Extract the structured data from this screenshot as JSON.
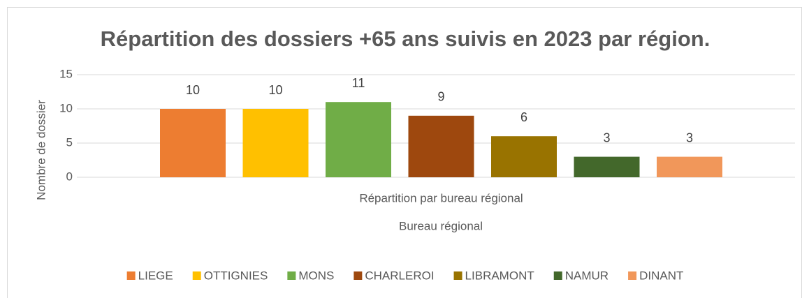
{
  "chart_data": {
    "type": "bar",
    "title": "Répartition des dossiers +65 ans suivis en 2023 par région.",
    "x_label": "Bureau régional",
    "y_label": "Nombre de dossier",
    "categories": [
      "Répartition par bureau régional"
    ],
    "series": [
      {
        "name": "LIEGE",
        "color": "#ED7D31",
        "values": [
          10
        ]
      },
      {
        "name": "OTTIGNIES",
        "color": "#FFC000",
        "values": [
          10
        ]
      },
      {
        "name": "MONS",
        "color": "#70AD47",
        "values": [
          11
        ]
      },
      {
        "name": "CHARLEROI",
        "color": "#9E480E",
        "values": [
          9
        ]
      },
      {
        "name": "LIBRAMONT",
        "color": "#997300",
        "values": [
          6
        ]
      },
      {
        "name": "NAMUR",
        "color": "#43682B",
        "values": [
          3
        ]
      },
      {
        "name": "DINANT",
        "color": "#F1975A",
        "values": [
          3
        ]
      }
    ],
    "ylim": [
      0,
      15
    ],
    "yticks": [
      0,
      5,
      10,
      15
    ],
    "grid": true,
    "legend": "bottom",
    "data_labels": true
  }
}
